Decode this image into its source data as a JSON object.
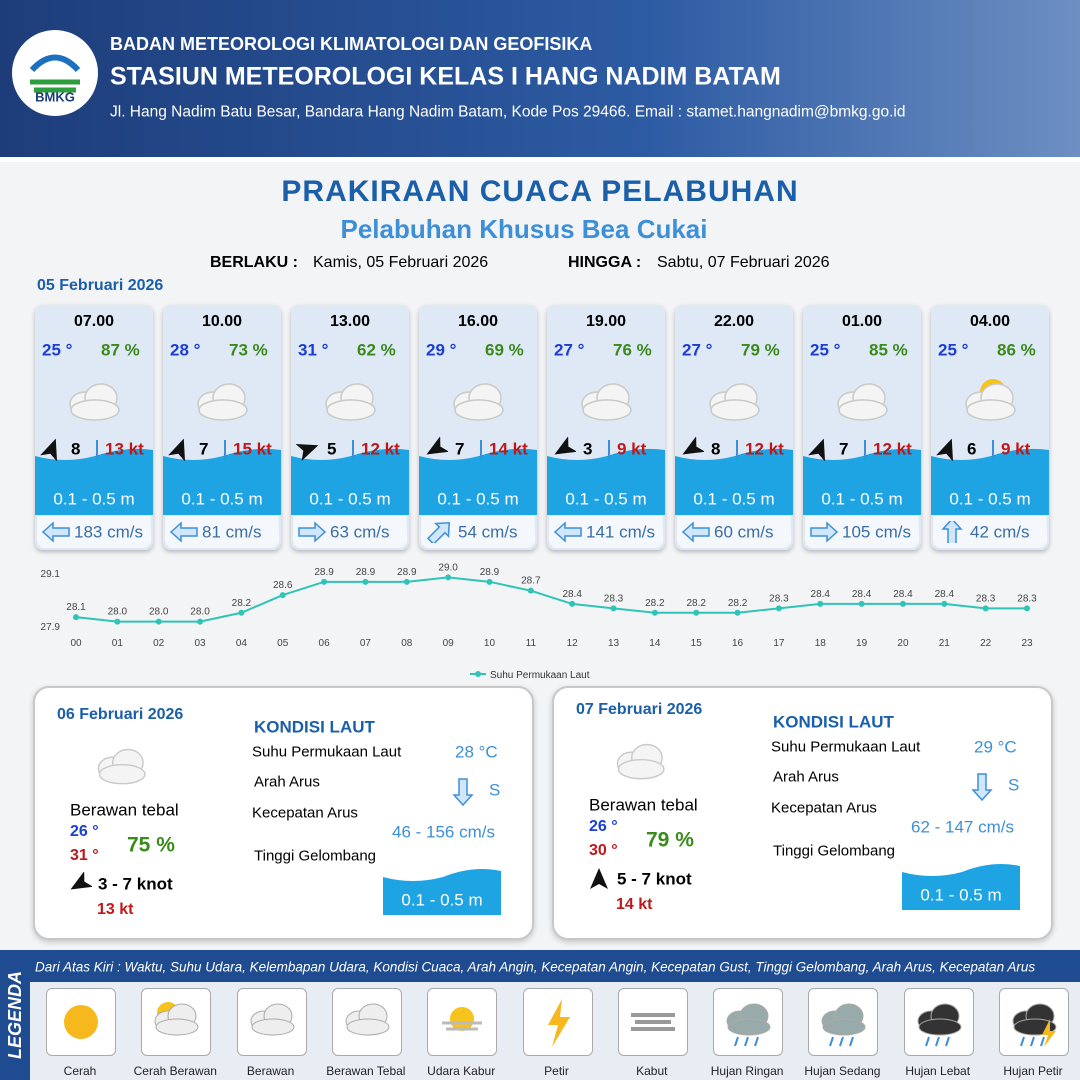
{
  "header": {
    "logo": "BMKG",
    "org": "BADAN METEOROLOGI KLIMATOLOGI DAN GEOFISIKA",
    "station": "STASIUN METEOROLOGI KELAS I HANG NADIM BATAM",
    "address": "Jl. Hang Nadim Batu Besar, Bandara Hang Nadim Batam, Kode Pos 29466. Email : stamet.hangnadim@bmkg.go.id"
  },
  "title": "PRAKIRAAN CUACA PELABUHAN",
  "subtitle": "Pelabuhan Khusus Bea Cukai",
  "validity": {
    "from_label": "BERLAKU :",
    "from": "Kamis, 05 Februari 2026",
    "to_label": "HINGGA :",
    "to": "Sabtu, 07 Februari 2026"
  },
  "day1": {
    "date": "05 Februari 2026",
    "cards": [
      {
        "time": "07.00",
        "temp": "25 °",
        "humidity": "87 %",
        "wind": "8",
        "gust": "13 kt",
        "wave": "0.1 - 0.5 m",
        "current": "183 cm/s"
      },
      {
        "time": "10.00",
        "temp": "28 °",
        "humidity": "73 %",
        "wind": "7",
        "gust": "15 kt",
        "wave": "0.1 - 0.5 m",
        "current": "81 cm/s"
      },
      {
        "time": "13.00",
        "temp": "31 °",
        "humidity": "62 %",
        "wind": "5",
        "gust": "12 kt",
        "wave": "0.1 - 0.5 m",
        "current": "63 cm/s"
      },
      {
        "time": "16.00",
        "temp": "29 °",
        "humidity": "69 %",
        "wind": "7",
        "gust": "14 kt",
        "wave": "0.1 - 0.5 m",
        "current": "54 cm/s"
      },
      {
        "time": "19.00",
        "temp": "27 °",
        "humidity": "76 %",
        "wind": "3",
        "gust": "9 kt",
        "wave": "0.1 - 0.5 m",
        "current": "141 cm/s"
      },
      {
        "time": "22.00",
        "temp": "27 °",
        "humidity": "79 %",
        "wind": "8",
        "gust": "12 kt",
        "wave": "0.1 - 0.5 m",
        "current": "60 cm/s"
      },
      {
        "time": "01.00",
        "temp": "25 °",
        "humidity": "85 %",
        "wind": "7",
        "gust": "12 kt",
        "wave": "0.1 - 0.5 m",
        "current": "105 cm/s"
      },
      {
        "time": "04.00",
        "temp": "25 °",
        "humidity": "86 %",
        "wind": "6",
        "gust": "9 kt",
        "wave": "0.1 - 0.5 m",
        "current": "42 cm/s"
      }
    ]
  },
  "chart_data": {
    "type": "line",
    "categories": [
      "00",
      "01",
      "02",
      "03",
      "04",
      "05",
      "06",
      "07",
      "08",
      "09",
      "10",
      "11",
      "12",
      "13",
      "14",
      "15",
      "16",
      "17",
      "18",
      "19",
      "20",
      "21",
      "22",
      "23"
    ],
    "series": [
      {
        "name": "Suhu Permukaan Laut",
        "color": "#2ec4b6",
        "values": [
          28.1,
          28.0,
          28.0,
          28.0,
          28.2,
          28.6,
          28.9,
          28.9,
          28.9,
          29.0,
          28.9,
          28.7,
          28.4,
          28.3,
          28.2,
          28.2,
          28.2,
          28.3,
          28.4,
          28.4,
          28.4,
          28.4,
          28.3,
          28.3
        ],
        "value_labels": [
          "28.1",
          "28.0",
          "28.0",
          "28.0",
          "28.2",
          "28.6",
          "28.9",
          "28.9",
          "28.9",
          "29.0",
          "28.9",
          "28.7",
          "28.4",
          "28.3",
          "28.2",
          "28.2",
          "28.2",
          "28.3",
          "28.4",
          "28.4",
          "28.4",
          "28.4",
          "28.3",
          "28.3"
        ]
      }
    ],
    "ylim": [
      27.9,
      29.1
    ],
    "yticks": [
      27.9,
      29.1
    ],
    "legend": "bottom"
  },
  "days": [
    {
      "date": "06 Februari 2026",
      "condition": "Berawan tebal",
      "temp_min": "26 °",
      "temp_max": "31 °",
      "humidity": "75 %",
      "wind": "3  - 7 knot",
      "gust": "13 kt",
      "sea_title": "KONDISI LAUT",
      "sst_label": "Suhu Permukaan Laut",
      "sst": "28 °C",
      "dir_label": "Arah Arus",
      "dir": "S",
      "speed_label": "Kecepatan Arus",
      "speed": "46  - 156 cm/s",
      "wave_label": "Tinggi Gelombang",
      "wave": "0.1 - 0.5 m"
    },
    {
      "date": "07 Februari 2026",
      "condition": "Berawan tebal",
      "temp_min": "26 °",
      "temp_max": "30 °",
      "humidity": "79 %",
      "wind": "5  - 7 knot",
      "gust": "14 kt",
      "sea_title": "KONDISI LAUT",
      "sst_label": "Suhu Permukaan Laut",
      "sst": "29 °C",
      "dir_label": "Arah Arus",
      "dir": "S",
      "speed_label": "Kecepatan Arus",
      "speed": "62  - 147 cm/s",
      "wave_label": "Tinggi Gelombang",
      "wave": "0.1 - 0.5 m"
    }
  ],
  "legend": {
    "title": "LEGENDA",
    "description": "Dari Atas Kiri : Waktu, Suhu Udara, Kelembapan Udara, Kondisi Cuaca, Arah Angin, Kecepatan Angin, Kecepatan Gust, Tinggi Gelombang, Arah Arus, Kecepatan Arus",
    "items": [
      "Cerah",
      "Cerah Berawan",
      "Berawan",
      "Berawan Tebal",
      "Udara Kabur",
      "Petir",
      "Kabut",
      "Hujan Ringan",
      "Hujan Sedang",
      "Hujan Lebat",
      "Hujan Petir"
    ]
  }
}
